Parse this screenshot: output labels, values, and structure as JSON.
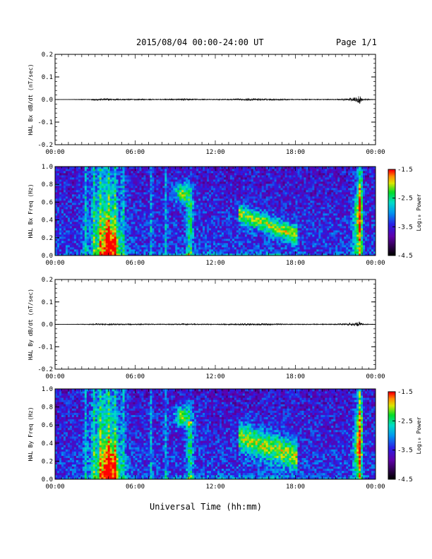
{
  "header": {
    "title": "2015/08/04  00:00-24:00 UT",
    "page": "Page 1/1"
  },
  "footer": {
    "xlabel": "Universal Time (hh:mm)"
  },
  "chart_data": [
    {
      "type": "line",
      "ylabel": "HAL Bx dB/dt (nT/sec)",
      "xlabel": "Universal Time (hh:mm)",
      "xlim": [
        0,
        24
      ],
      "ylim": [
        -0.2,
        0.2
      ],
      "xticks": [
        "00:00",
        "06:00",
        "12:00",
        "18:00",
        "00:00"
      ],
      "yticks": [
        "-0.2",
        "-0.1",
        "0.0",
        "0.1",
        "0.2"
      ],
      "yticks_values": [
        -0.2,
        -0.1,
        0.0,
        0.1,
        0.2
      ],
      "series": [
        {
          "x": [
            0,
            2.5,
            3.0,
            4.0,
            5.0,
            8.0,
            9.5,
            12.0,
            14.0,
            15.0,
            16.0,
            18.0,
            21.0,
            22.6,
            22.8,
            23.0,
            24.0
          ],
          "y": [
            0,
            0.002,
            0.004,
            0.005,
            0.003,
            0.002,
            0.004,
            0.002,
            0.004,
            0.005,
            0.004,
            0.002,
            0.002,
            0.01,
            0.025,
            0.005,
            0
          ]
        }
      ]
    },
    {
      "type": "heatmap",
      "ylabel": "HAL Bx Freq (Hz)",
      "xlabel": "Universal Time (hh:mm)",
      "xlim": [
        0,
        24
      ],
      "ylim": [
        0.0,
        1.0
      ],
      "xticks": [
        "00:00",
        "06:00",
        "12:00",
        "18:00",
        "00:00"
      ],
      "yticks": [
        "0.0",
        "0.2",
        "0.4",
        "0.6",
        "0.8",
        "1.0"
      ],
      "yticks_values": [
        0.0,
        0.2,
        0.4,
        0.6,
        0.8,
        1.0
      ],
      "colorbar": {
        "label": "Log₁₀ Power",
        "ticks": [
          "-1.5",
          "-2.5",
          "-3.5",
          "-4.5"
        ],
        "ticks_values": [
          -1.5,
          -2.5,
          -3.5,
          -4.5
        ],
        "range": [
          -4.5,
          -1.5
        ]
      }
    },
    {
      "type": "line",
      "ylabel": "HAL By dB/dt (nT/sec)",
      "xlabel": "Universal Time (hh:mm)",
      "xlim": [
        0,
        24
      ],
      "ylim": [
        -0.2,
        0.2
      ],
      "xticks": [
        "00:00",
        "06:00",
        "12:00",
        "18:00",
        "00:00"
      ],
      "yticks": [
        "-0.2",
        "-0.1",
        "0.0",
        "0.1",
        "0.2"
      ],
      "yticks_values": [
        -0.2,
        -0.1,
        0.0,
        0.1,
        0.2
      ],
      "series": [
        {
          "x": [
            0,
            2.5,
            3.0,
            4.0,
            5.0,
            8.0,
            9.5,
            12.0,
            14.0,
            15.0,
            16.0,
            18.0,
            21.0,
            22.6,
            22.8,
            23.0,
            24.0
          ],
          "y": [
            0,
            0.002,
            0.003,
            0.004,
            0.003,
            0.002,
            0.003,
            0.002,
            0.004,
            0.005,
            0.004,
            0.002,
            0.002,
            0.008,
            0.012,
            0.004,
            0
          ]
        }
      ]
    },
    {
      "type": "heatmap",
      "ylabel": "HAL By Freq (Hz)",
      "xlabel": "Universal Time (hh:mm)",
      "xlim": [
        0,
        24
      ],
      "ylim": [
        0.0,
        1.0
      ],
      "xticks": [
        "00:00",
        "06:00",
        "12:00",
        "18:00",
        "00:00"
      ],
      "yticks": [
        "0.0",
        "0.2",
        "0.4",
        "0.6",
        "0.8",
        "1.0"
      ],
      "yticks_values": [
        0.0,
        0.2,
        0.4,
        0.6,
        0.8,
        1.0
      ],
      "colorbar": {
        "label": "Log₁₀ Power",
        "ticks": [
          "-1.5",
          "-2.5",
          "-3.5",
          "-4.5"
        ],
        "ticks_values": [
          -1.5,
          -2.5,
          -3.5,
          -4.5
        ],
        "range": [
          -4.5,
          -1.5
        ]
      }
    }
  ]
}
